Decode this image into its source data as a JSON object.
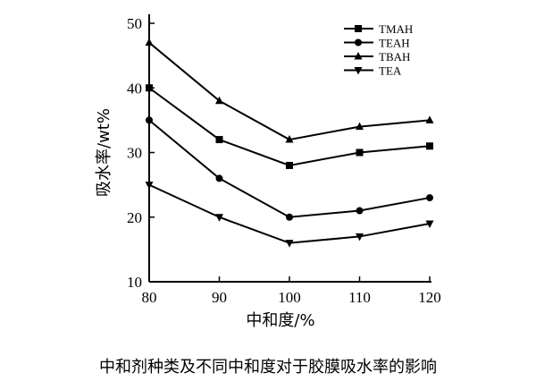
{
  "chart_data": {
    "type": "line",
    "title": "",
    "xlabel": "中和度/%",
    "ylabel": "吸水率/wt%",
    "xlim": [
      80,
      120
    ],
    "ylim": [
      10,
      50
    ],
    "xticks": [
      80,
      90,
      100,
      110,
      120
    ],
    "yticks": [
      10,
      20,
      30,
      40,
      50
    ],
    "grid": false,
    "legend_position": "top-right",
    "x": [
      80,
      90,
      100,
      110,
      120
    ],
    "series": [
      {
        "name": "TMAH",
        "marker": "square",
        "values": [
          40,
          32,
          28,
          30,
          31
        ]
      },
      {
        "name": "TEAH",
        "marker": "circle",
        "values": [
          35,
          26,
          20,
          21,
          23
        ]
      },
      {
        "name": "TBAH",
        "marker": "triangle-up",
        "values": [
          47,
          38,
          32,
          34,
          35
        ]
      },
      {
        "name": "TEA",
        "marker": "triangle-down",
        "values": [
          25,
          20,
          16,
          17,
          19
        ]
      }
    ],
    "color": "#000000"
  },
  "caption": "中和剂种类及不同中和度对于胶膜吸水率的影响"
}
